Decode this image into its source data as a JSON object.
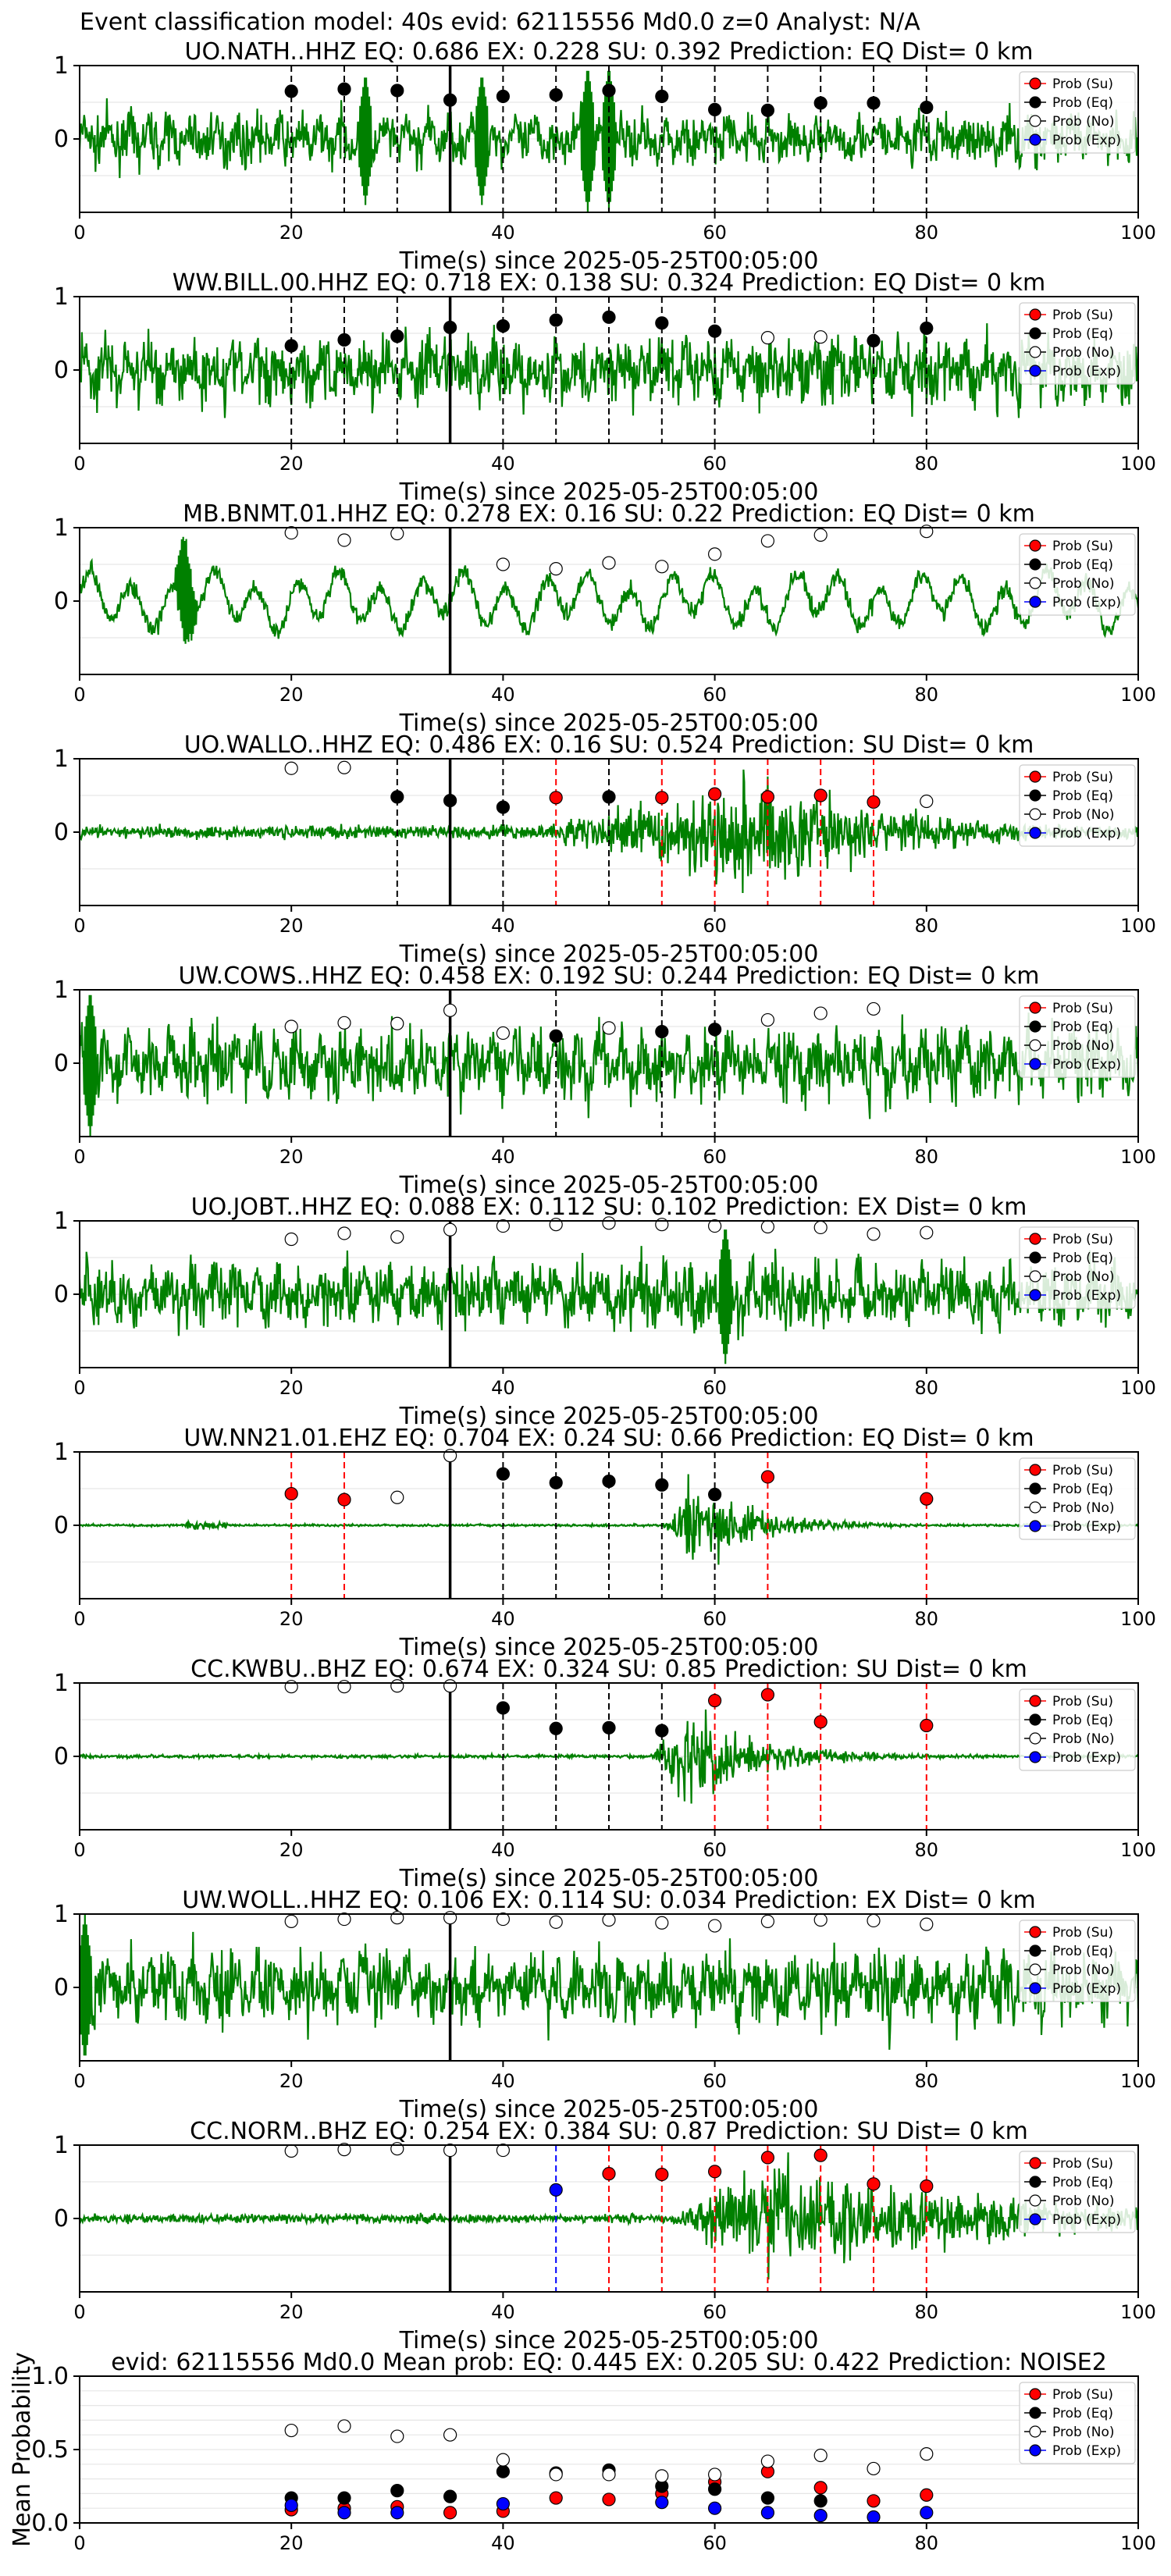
{
  "figure_title": "Event classification model: 40s evid: 62115556 Md0.0 z=0 Analyst: N/A",
  "xlabel": "Time(s) since 2025-05-25T00:05:00",
  "legend_labels": [
    "Prob (Su)",
    "Prob (Eq)",
    "Prob (No)",
    "Prob (Exp)"
  ],
  "colors": {
    "waveform": "#008000",
    "su": "#ff0000",
    "eq": "#000000",
    "no": "#ffffff",
    "exp": "#0000ff",
    "grid": "#e6e6e6"
  },
  "chart_data": [
    {
      "type": "line",
      "station": "UO.NATH..HHZ",
      "title": "UO.NATH..HHZ   EQ: 0.686  EX: 0.228  SU: 0.392   Prediction: EQ    Dist= 0 km",
      "xlim": [
        0,
        100
      ],
      "ylim": [
        -1,
        1
      ],
      "xticks": [
        0,
        20,
        40,
        60,
        80,
        100
      ],
      "yticks": [
        0,
        1
      ],
      "xlabel": "Time(s) since 2025-05-25T00:05:00",
      "pick_time": 35,
      "waveform": {
        "style": "noise",
        "amp": 0.55,
        "bursts": [
          [
            27,
            0.9
          ],
          [
            38,
            0.9
          ],
          [
            48,
            1.0
          ],
          [
            50,
            1.0
          ]
        ]
      },
      "points": [
        {
          "x": 20,
          "y": 0.65,
          "cls": "eq"
        },
        {
          "x": 25,
          "y": 0.68,
          "cls": "eq"
        },
        {
          "x": 30,
          "y": 0.66,
          "cls": "eq"
        },
        {
          "x": 35,
          "y": 0.53,
          "cls": "eq"
        },
        {
          "x": 40,
          "y": 0.58,
          "cls": "eq"
        },
        {
          "x": 45,
          "y": 0.6,
          "cls": "eq"
        },
        {
          "x": 50,
          "y": 0.66,
          "cls": "eq"
        },
        {
          "x": 55,
          "y": 0.58,
          "cls": "eq"
        },
        {
          "x": 60,
          "y": 0.4,
          "cls": "eq"
        },
        {
          "x": 65,
          "y": 0.39,
          "cls": "eq"
        },
        {
          "x": 70,
          "y": 0.49,
          "cls": "eq"
        },
        {
          "x": 75,
          "y": 0.49,
          "cls": "eq"
        },
        {
          "x": 80,
          "y": 0.43,
          "cls": "eq"
        }
      ]
    },
    {
      "type": "line",
      "station": "WW.BILL.00.HHZ",
      "title": "WW.BILL.00.HHZ   EQ: 0.718  EX: 0.138  SU: 0.324   Prediction: EQ    Dist= 0 km",
      "xlim": [
        0,
        100
      ],
      "ylim": [
        -1,
        1
      ],
      "xticks": [
        0,
        20,
        40,
        60,
        80,
        100
      ],
      "yticks": [
        0,
        1
      ],
      "xlabel": "Time(s) since 2025-05-25T00:05:00",
      "pick_time": 35,
      "waveform": {
        "style": "noise",
        "amp": 0.75,
        "bursts": []
      },
      "points": [
        {
          "x": 20,
          "y": 0.33,
          "cls": "eq"
        },
        {
          "x": 25,
          "y": 0.41,
          "cls": "eq"
        },
        {
          "x": 30,
          "y": 0.46,
          "cls": "eq"
        },
        {
          "x": 35,
          "y": 0.58,
          "cls": "eq"
        },
        {
          "x": 40,
          "y": 0.6,
          "cls": "eq"
        },
        {
          "x": 45,
          "y": 0.68,
          "cls": "eq"
        },
        {
          "x": 50,
          "y": 0.72,
          "cls": "eq"
        },
        {
          "x": 55,
          "y": 0.64,
          "cls": "eq"
        },
        {
          "x": 60,
          "y": 0.53,
          "cls": "eq"
        },
        {
          "x": 65,
          "y": 0.44,
          "cls": "no"
        },
        {
          "x": 70,
          "y": 0.45,
          "cls": "no"
        },
        {
          "x": 75,
          "y": 0.4,
          "cls": "eq"
        },
        {
          "x": 80,
          "y": 0.57,
          "cls": "eq"
        }
      ]
    },
    {
      "type": "line",
      "station": "MB.BNMT.01.HHZ",
      "title": "MB.BNMT.01.HHZ   EQ: 0.278  EX: 0.16  SU: 0.22   Prediction: EQ    Dist= 0 km",
      "xlim": [
        0,
        100
      ],
      "ylim": [
        -1,
        1
      ],
      "xticks": [
        0,
        20,
        40,
        60,
        80,
        100
      ],
      "yticks": [
        0,
        1
      ],
      "xlabel": "Time(s) since 2025-05-25T00:05:00",
      "pick_time": 35,
      "waveform": {
        "style": "swell",
        "amp": 0.55,
        "bursts": [
          [
            10,
            0.95
          ]
        ]
      },
      "points": [
        {
          "x": 20,
          "y": 0.93,
          "cls": "no"
        },
        {
          "x": 25,
          "y": 0.83,
          "cls": "no"
        },
        {
          "x": 30,
          "y": 0.92,
          "cls": "no"
        },
        {
          "x": 40,
          "y": 0.5,
          "cls": "no"
        },
        {
          "x": 45,
          "y": 0.44,
          "cls": "no"
        },
        {
          "x": 50,
          "y": 0.52,
          "cls": "no"
        },
        {
          "x": 55,
          "y": 0.47,
          "cls": "no"
        },
        {
          "x": 60,
          "y": 0.64,
          "cls": "no"
        },
        {
          "x": 65,
          "y": 0.82,
          "cls": "no"
        },
        {
          "x": 70,
          "y": 0.9,
          "cls": "no"
        },
        {
          "x": 80,
          "y": 0.95,
          "cls": "no"
        }
      ]
    },
    {
      "type": "line",
      "station": "UO.WALLO..HHZ",
      "title": "UO.WALLO..HHZ   EQ: 0.486  EX: 0.16  SU: 0.524   Prediction: SU    Dist= 0 km",
      "xlim": [
        0,
        100
      ],
      "ylim": [
        -1,
        1
      ],
      "xticks": [
        0,
        20,
        40,
        60,
        80,
        100
      ],
      "yticks": [
        0,
        1
      ],
      "xlabel": "Time(s) since 2025-05-25T00:05:00",
      "pick_time": 35,
      "waveform": {
        "style": "event",
        "amp": 0.12,
        "onset": 40,
        "peak": 65,
        "peakAmp": 1.0,
        "decay": 14
      },
      "points": [
        {
          "x": 20,
          "y": 0.87,
          "cls": "no"
        },
        {
          "x": 25,
          "y": 0.88,
          "cls": "no"
        },
        {
          "x": 30,
          "y": 0.48,
          "cls": "eq"
        },
        {
          "x": 35,
          "y": 0.43,
          "cls": "eq"
        },
        {
          "x": 40,
          "y": 0.34,
          "cls": "eq"
        },
        {
          "x": 45,
          "y": 0.47,
          "cls": "su"
        },
        {
          "x": 50,
          "y": 0.48,
          "cls": "eq"
        },
        {
          "x": 55,
          "y": 0.47,
          "cls": "su"
        },
        {
          "x": 60,
          "y": 0.52,
          "cls": "su"
        },
        {
          "x": 65,
          "y": 0.48,
          "cls": "su"
        },
        {
          "x": 70,
          "y": 0.5,
          "cls": "su"
        },
        {
          "x": 75,
          "y": 0.41,
          "cls": "su"
        },
        {
          "x": 80,
          "y": 0.42,
          "cls": "no"
        }
      ]
    },
    {
      "type": "line",
      "station": "UW.COWS..HHZ",
      "title": "UW.COWS..HHZ   EQ: 0.458  EX: 0.192  SU: 0.244   Prediction: EQ    Dist= 0 km",
      "xlim": [
        0,
        100
      ],
      "ylim": [
        -1,
        1
      ],
      "xticks": [
        0,
        20,
        40,
        60,
        80,
        100
      ],
      "yticks": [
        0,
        1
      ],
      "xlabel": "Time(s) since 2025-05-25T00:05:00",
      "pick_time": 35,
      "waveform": {
        "style": "noise",
        "amp": 0.8,
        "bursts": [
          [
            1,
            1.0
          ]
        ]
      },
      "points": [
        {
          "x": 20,
          "y": 0.5,
          "cls": "no"
        },
        {
          "x": 25,
          "y": 0.55,
          "cls": "no"
        },
        {
          "x": 30,
          "y": 0.54,
          "cls": "no"
        },
        {
          "x": 35,
          "y": 0.72,
          "cls": "no"
        },
        {
          "x": 40,
          "y": 0.41,
          "cls": "no"
        },
        {
          "x": 45,
          "y": 0.37,
          "cls": "eq"
        },
        {
          "x": 50,
          "y": 0.48,
          "cls": "no"
        },
        {
          "x": 55,
          "y": 0.43,
          "cls": "eq"
        },
        {
          "x": 60,
          "y": 0.46,
          "cls": "eq"
        },
        {
          "x": 65,
          "y": 0.59,
          "cls": "no"
        },
        {
          "x": 70,
          "y": 0.68,
          "cls": "no"
        },
        {
          "x": 75,
          "y": 0.74,
          "cls": "no"
        }
      ]
    },
    {
      "type": "line",
      "station": "UO.JOBT..HHZ",
      "title": "UO.JOBT..HHZ   EQ: 0.088  EX: 0.112  SU: 0.102   Prediction: EX    Dist= 0 km",
      "xlim": [
        0,
        100
      ],
      "ylim": [
        -1,
        1
      ],
      "xticks": [
        0,
        20,
        40,
        60,
        80,
        100
      ],
      "yticks": [
        0,
        1
      ],
      "xlabel": "Time(s) since 2025-05-25T00:05:00",
      "pick_time": 35,
      "waveform": {
        "style": "noise",
        "amp": 0.7,
        "bursts": [
          [
            61,
            0.95
          ]
        ]
      },
      "points": [
        {
          "x": 20,
          "y": 0.75,
          "cls": "no"
        },
        {
          "x": 25,
          "y": 0.83,
          "cls": "no"
        },
        {
          "x": 30,
          "y": 0.78,
          "cls": "no"
        },
        {
          "x": 35,
          "y": 0.88,
          "cls": "no"
        },
        {
          "x": 40,
          "y": 0.93,
          "cls": "no"
        },
        {
          "x": 45,
          "y": 0.95,
          "cls": "no"
        },
        {
          "x": 50,
          "y": 0.97,
          "cls": "no"
        },
        {
          "x": 55,
          "y": 0.95,
          "cls": "no"
        },
        {
          "x": 60,
          "y": 0.93,
          "cls": "no"
        },
        {
          "x": 65,
          "y": 0.92,
          "cls": "no"
        },
        {
          "x": 70,
          "y": 0.91,
          "cls": "no"
        },
        {
          "x": 75,
          "y": 0.82,
          "cls": "no"
        },
        {
          "x": 80,
          "y": 0.84,
          "cls": "no"
        }
      ]
    },
    {
      "type": "line",
      "station": "UW.NN21.01.EHZ",
      "title": "UW.NN21.01.EHZ   EQ: 0.704  EX: 0.24  SU: 0.66   Prediction: EQ    Dist= 0 km",
      "xlim": [
        0,
        100
      ],
      "ylim": [
        -1,
        1
      ],
      "xticks": [
        0,
        20,
        40,
        60,
        80,
        100
      ],
      "yticks": [
        0,
        1
      ],
      "xlabel": "Time(s) since 2025-05-25T00:05:00",
      "pick_time": 35,
      "waveform": {
        "style": "event",
        "amp": 0.02,
        "onset": 55,
        "peak": 58,
        "peakAmp": 0.8,
        "decay": 6,
        "extra": [
          [
            12,
            0.08
          ]
        ]
      },
      "points": [
        {
          "x": 20,
          "y": 0.43,
          "cls": "su"
        },
        {
          "x": 25,
          "y": 0.35,
          "cls": "su"
        },
        {
          "x": 30,
          "y": 0.38,
          "cls": "no"
        },
        {
          "x": 35,
          "y": 0.95,
          "cls": "no"
        },
        {
          "x": 40,
          "y": 0.7,
          "cls": "eq"
        },
        {
          "x": 45,
          "y": 0.58,
          "cls": "eq"
        },
        {
          "x": 50,
          "y": 0.6,
          "cls": "eq"
        },
        {
          "x": 55,
          "y": 0.55,
          "cls": "eq"
        },
        {
          "x": 60,
          "y": 0.42,
          "cls": "eq"
        },
        {
          "x": 65,
          "y": 0.66,
          "cls": "su"
        },
        {
          "x": 80,
          "y": 0.36,
          "cls": "su"
        }
      ]
    },
    {
      "type": "line",
      "station": "CC.KWBU..BHZ",
      "title": "CC.KWBU..BHZ   EQ: 0.674  EX: 0.324  SU: 0.85   Prediction: SU    Dist= 0 km",
      "xlim": [
        0,
        100
      ],
      "ylim": [
        -1,
        1
      ],
      "xticks": [
        0,
        20,
        40,
        60,
        80,
        100
      ],
      "yticks": [
        0,
        1
      ],
      "xlabel": "Time(s) since 2025-05-25T00:05:00",
      "pick_time": 35,
      "waveform": {
        "style": "event",
        "amp": 0.03,
        "onset": 54,
        "peak": 57,
        "peakAmp": 0.95,
        "decay": 7
      },
      "points": [
        {
          "x": 20,
          "y": 0.95,
          "cls": "no"
        },
        {
          "x": 25,
          "y": 0.95,
          "cls": "no"
        },
        {
          "x": 30,
          "y": 0.96,
          "cls": "no"
        },
        {
          "x": 35,
          "y": 0.96,
          "cls": "no"
        },
        {
          "x": 40,
          "y": 0.66,
          "cls": "eq"
        },
        {
          "x": 45,
          "y": 0.38,
          "cls": "eq"
        },
        {
          "x": 50,
          "y": 0.39,
          "cls": "eq"
        },
        {
          "x": 55,
          "y": 0.35,
          "cls": "eq"
        },
        {
          "x": 60,
          "y": 0.76,
          "cls": "su"
        },
        {
          "x": 65,
          "y": 0.84,
          "cls": "su"
        },
        {
          "x": 70,
          "y": 0.47,
          "cls": "su"
        },
        {
          "x": 80,
          "y": 0.42,
          "cls": "su"
        }
      ]
    },
    {
      "type": "line",
      "station": "UW.WOLL..HHZ",
      "title": "UW.WOLL..HHZ   EQ: 0.106  EX: 0.114  SU: 0.034   Prediction: EX    Dist= 0 km",
      "xlim": [
        0,
        100
      ],
      "ylim": [
        -1,
        1
      ],
      "xticks": [
        0,
        20,
        40,
        60,
        80,
        100
      ],
      "yticks": [
        0,
        1
      ],
      "xlabel": "Time(s) since 2025-05-25T00:05:00",
      "pick_time": 35,
      "waveform": {
        "style": "noise",
        "amp": 0.8,
        "bursts": [
          [
            0.5,
            1.0
          ]
        ]
      },
      "points": [
        {
          "x": 20,
          "y": 0.9,
          "cls": "no"
        },
        {
          "x": 25,
          "y": 0.93,
          "cls": "no"
        },
        {
          "x": 30,
          "y": 0.95,
          "cls": "no"
        },
        {
          "x": 35,
          "y": 0.95,
          "cls": "no"
        },
        {
          "x": 40,
          "y": 0.93,
          "cls": "no"
        },
        {
          "x": 45,
          "y": 0.89,
          "cls": "no"
        },
        {
          "x": 50,
          "y": 0.92,
          "cls": "no"
        },
        {
          "x": 55,
          "y": 0.88,
          "cls": "no"
        },
        {
          "x": 60,
          "y": 0.84,
          "cls": "no"
        },
        {
          "x": 65,
          "y": 0.9,
          "cls": "no"
        },
        {
          "x": 70,
          "y": 0.92,
          "cls": "no"
        },
        {
          "x": 75,
          "y": 0.91,
          "cls": "no"
        },
        {
          "x": 80,
          "y": 0.86,
          "cls": "no"
        }
      ]
    },
    {
      "type": "line",
      "station": "CC.NORM..BHZ",
      "title": "CC.NORM..BHZ   EQ: 0.254  EX: 0.384  SU: 0.87   Prediction: SU    Dist= 0 km",
      "xlim": [
        0,
        100
      ],
      "ylim": [
        -1,
        1
      ],
      "xticks": [
        0,
        20,
        40,
        60,
        80,
        100
      ],
      "yticks": [
        0,
        1
      ],
      "xlabel": "Time(s) since 2025-05-25T00:05:00",
      "pick_time": 35,
      "waveform": {
        "style": "event",
        "amp": 0.08,
        "onset": 55,
        "peak": 65,
        "peakAmp": 0.95,
        "decay": 25
      },
      "points": [
        {
          "x": 20,
          "y": 0.92,
          "cls": "no"
        },
        {
          "x": 25,
          "y": 0.94,
          "cls": "no"
        },
        {
          "x": 30,
          "y": 0.95,
          "cls": "no"
        },
        {
          "x": 35,
          "y": 0.93,
          "cls": "no"
        },
        {
          "x": 40,
          "y": 0.93,
          "cls": "no"
        },
        {
          "x": 45,
          "y": 0.39,
          "cls": "exp"
        },
        {
          "x": 50,
          "y": 0.61,
          "cls": "su"
        },
        {
          "x": 55,
          "y": 0.6,
          "cls": "su"
        },
        {
          "x": 60,
          "y": 0.64,
          "cls": "su"
        },
        {
          "x": 65,
          "y": 0.83,
          "cls": "su"
        },
        {
          "x": 70,
          "y": 0.86,
          "cls": "su"
        },
        {
          "x": 75,
          "y": 0.47,
          "cls": "su"
        },
        {
          "x": 80,
          "y": 0.44,
          "cls": "su"
        }
      ]
    },
    {
      "type": "scatter",
      "title": "evid: 62115556  Md0.0   Mean prob:   EQ: 0.445  EX: 0.205  SU: 0.422   Prediction: NOISE2",
      "ylabel": "Mean Probability",
      "xlim": [
        0,
        100
      ],
      "ylim": [
        0,
        1
      ],
      "xticks": [
        0,
        20,
        40,
        60,
        80,
        100
      ],
      "yticks": [
        0.0,
        0.5,
        1.0
      ],
      "x": [
        20,
        25,
        30,
        35,
        40,
        45,
        50,
        55,
        60,
        65,
        70,
        75,
        80
      ],
      "series": [
        {
          "name": "Prob (Su)",
          "cls": "su",
          "values": [
            0.09,
            0.1,
            0.11,
            0.07,
            0.08,
            0.17,
            0.16,
            0.2,
            0.28,
            0.35,
            0.24,
            0.15,
            0.19
          ]
        },
        {
          "name": "Prob (Eq)",
          "cls": "eq",
          "values": [
            0.17,
            0.17,
            0.22,
            0.18,
            0.35,
            0.34,
            0.36,
            0.25,
            0.23,
            0.17,
            0.15,
            null,
            null
          ]
        },
        {
          "name": "Prob (No)",
          "cls": "no",
          "values": [
            0.63,
            0.66,
            0.59,
            0.6,
            0.43,
            0.33,
            0.33,
            0.32,
            0.33,
            0.42,
            0.46,
            0.37,
            0.47
          ]
        },
        {
          "name": "Prob (Exp)",
          "cls": "exp",
          "values": [
            0.12,
            0.07,
            0.07,
            null,
            0.13,
            null,
            null,
            0.14,
            0.1,
            0.07,
            0.05,
            0.04,
            0.07
          ]
        }
      ]
    }
  ]
}
